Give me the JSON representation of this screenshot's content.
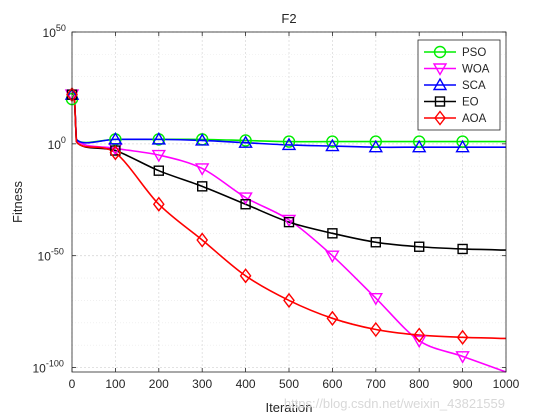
{
  "chart_data": {
    "type": "line",
    "title": "F2",
    "xlabel": "Iteration",
    "ylabel": "Fitness",
    "xlim": [
      0,
      1000
    ],
    "ylim_log10": [
      -102,
      50
    ],
    "yscale": "log",
    "x_ticks": [
      "0",
      "100",
      "200",
      "300",
      "400",
      "500",
      "600",
      "700",
      "800",
      "900",
      "1000"
    ],
    "y_ticks": [
      {
        "base": "10",
        "exp": "50"
      },
      {
        "base": "10",
        "exp": "0"
      },
      {
        "base": "10",
        "exp": "-50"
      },
      {
        "base": "10",
        "exp": "-100"
      }
    ],
    "grid": true,
    "legend_location": "top-right",
    "x": [
      0,
      5,
      10,
      100,
      200,
      300,
      400,
      500,
      600,
      700,
      800,
      900,
      1000
    ],
    "series": [
      {
        "name": "PSO",
        "color": "#00ee00",
        "marker": "circle",
        "log10_values": [
          20,
          22,
          2,
          2,
          2,
          2,
          1.5,
          1,
          1,
          1,
          1,
          1,
          1
        ]
      },
      {
        "name": "WOA",
        "color": "#ff00ff",
        "marker": "triangle-down",
        "log10_values": [
          22,
          24,
          2,
          -2,
          -5,
          -11,
          -24,
          -34,
          -50,
          -69,
          -88,
          -95,
          -102
        ]
      },
      {
        "name": "SCA",
        "color": "#0000ff",
        "marker": "triangle-up",
        "log10_values": [
          22,
          24,
          2,
          2,
          2,
          1.5,
          0.5,
          -0.5,
          -1,
          -1.5,
          -1.5,
          -1.5,
          -1.5
        ]
      },
      {
        "name": "EO",
        "color": "#000000",
        "marker": "square",
        "log10_values": [
          22,
          24,
          1,
          -3,
          -12,
          -19,
          -27,
          -35,
          -40,
          -44,
          -46,
          -47,
          -47.5
        ]
      },
      {
        "name": "AOA",
        "color": "#ff0000",
        "marker": "diamond",
        "log10_values": [
          22,
          24,
          1,
          -4,
          -27,
          -43,
          -59,
          -70,
          -78,
          -83,
          -85.5,
          -86.5,
          -87
        ]
      }
    ]
  },
  "watermark": "https://blog.csdn.net/weixin_43821559"
}
